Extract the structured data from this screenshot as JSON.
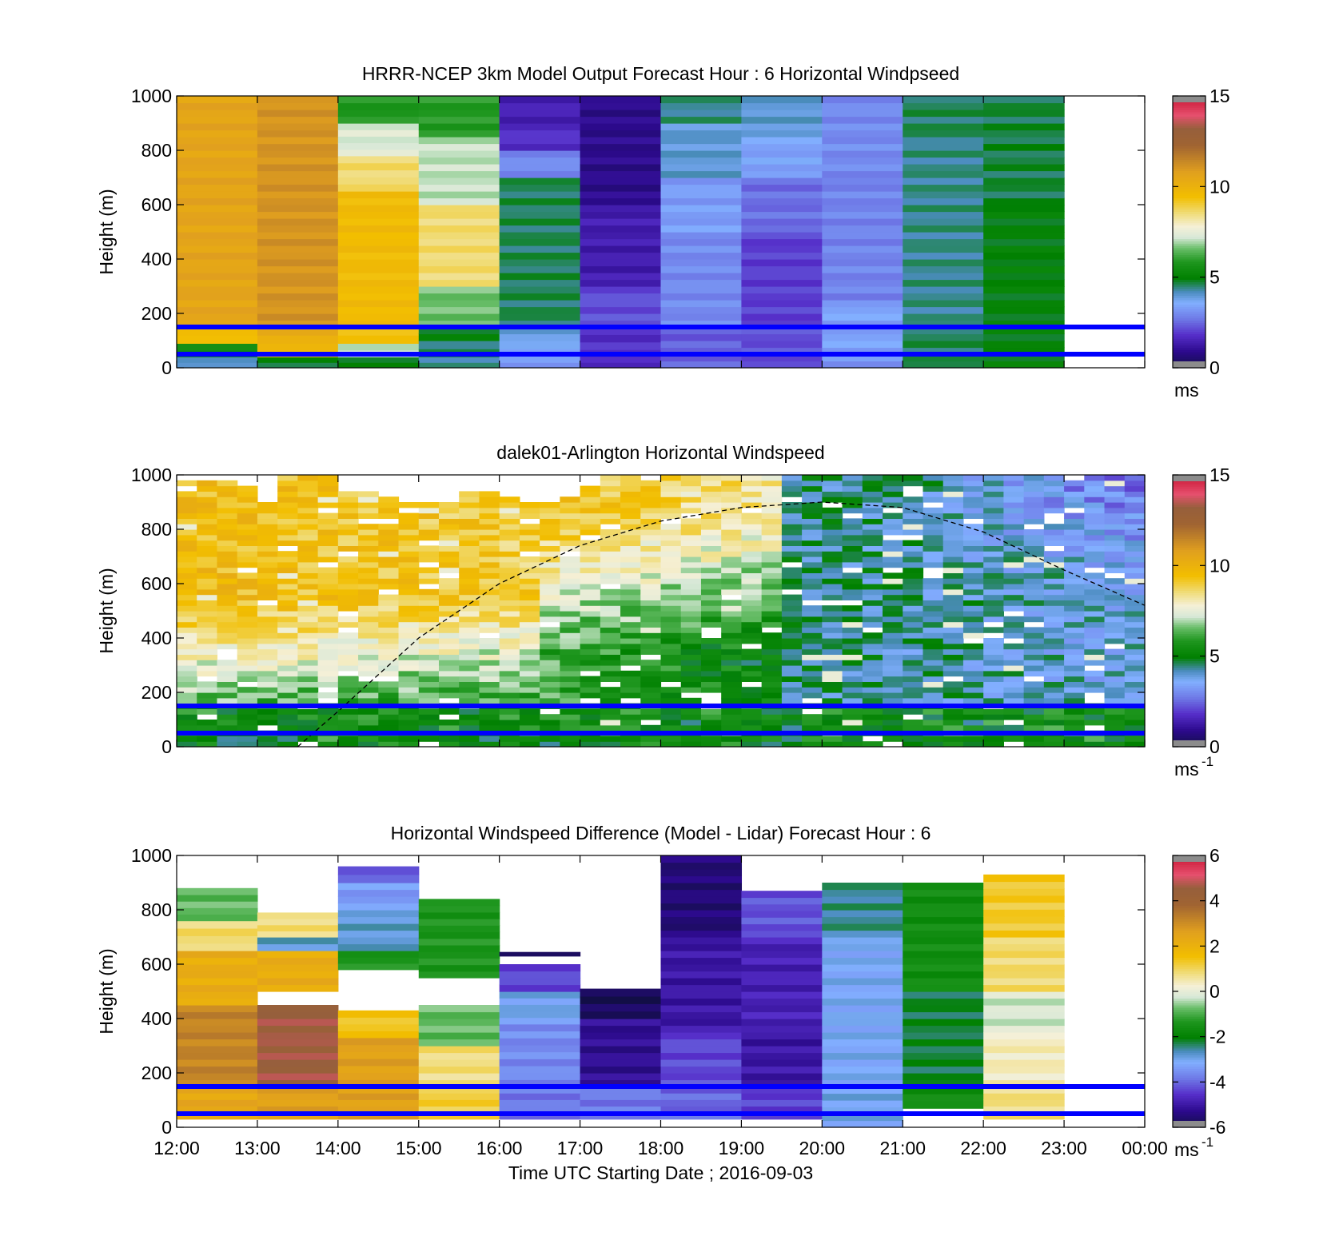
{
  "chart_data": [
    {
      "type": "heatmap",
      "title": "HRRR-NCEP 3km Model Output   Forecast Hour : 6 Horizontal Windpseed",
      "ylabel": "Height (m)",
      "ylim": [
        0,
        1000
      ],
      "yticks": [
        "0",
        "200",
        "400",
        "600",
        "800",
        "1000"
      ],
      "xlim": [
        12,
        24
      ],
      "grid": false,
      "colorbar": {
        "range": [
          0,
          15
        ],
        "ticks": [
          "0",
          "5",
          "10",
          "15"
        ],
        "unit": "ms"
      },
      "reference_lines_m": [
        150,
        50
      ],
      "reference_line_color": "#0000ff",
      "columns": [
        {
          "x0": 12,
          "x1": 13,
          "rows": [
            [
              0,
              40,
              4.2
            ],
            [
              40,
              90,
              5.6
            ],
            [
              90,
              150,
              9.6
            ],
            [
              150,
              1000,
              10.6
            ]
          ]
        },
        {
          "x0": 13,
          "x1": 14,
          "rows": [
            [
              0,
              40,
              4.8
            ],
            [
              40,
              90,
              9.6
            ],
            [
              90,
              150,
              10.2
            ],
            [
              150,
              1000,
              11.1
            ]
          ]
        },
        {
          "x0": 14,
          "x1": 15,
          "rows": [
            [
              0,
              40,
              4.8
            ],
            [
              40,
              90,
              7.0
            ],
            [
              90,
              150,
              9.3
            ],
            [
              150,
              650,
              9.6
            ],
            [
              650,
              780,
              8.6
            ],
            [
              780,
              900,
              7.3
            ],
            [
              900,
              1000,
              5.8
            ]
          ]
        },
        {
          "x0": 15,
          "x1": 16,
          "rows": [
            [
              0,
              40,
              4.4
            ],
            [
              40,
              100,
              4.6
            ],
            [
              100,
              150,
              5.0
            ],
            [
              150,
              300,
              6.6
            ],
            [
              300,
              600,
              8.6
            ],
            [
              600,
              850,
              7.1
            ],
            [
              850,
              1000,
              5.9
            ]
          ]
        },
        {
          "x0": 16,
          "x1": 17,
          "rows": [
            [
              0,
              40,
              3.3
            ],
            [
              40,
              100,
              3.6
            ],
            [
              100,
              150,
              4.0
            ],
            [
              150,
              700,
              4.6
            ],
            [
              700,
              800,
              3.0
            ],
            [
              800,
              900,
              1.8
            ],
            [
              900,
              1000,
              1.5
            ]
          ]
        },
        {
          "x0": 17,
          "x1": 18,
          "rows": [
            [
              0,
              40,
              1.6
            ],
            [
              40,
              150,
              1.8
            ],
            [
              150,
              300,
              2.2
            ],
            [
              300,
              600,
              1.4
            ],
            [
              600,
              1000,
              0.9
            ]
          ]
        },
        {
          "x0": 18,
          "x1": 19,
          "rows": [
            [
              0,
              150,
              2.4
            ],
            [
              150,
              500,
              3.0
            ],
            [
              500,
              700,
              3.3
            ],
            [
              700,
              900,
              4.0
            ],
            [
              900,
              1000,
              4.4
            ]
          ]
        },
        {
          "x0": 19,
          "x1": 20,
          "rows": [
            [
              0,
              150,
              2.2
            ],
            [
              150,
              500,
              2.0
            ],
            [
              500,
              700,
              2.6
            ],
            [
              700,
              850,
              3.4
            ],
            [
              850,
              1000,
              4.0
            ]
          ]
        },
        {
          "x0": 20,
          "x1": 21,
          "rows": [
            [
              0,
              50,
              3.2
            ],
            [
              50,
              150,
              3.4
            ],
            [
              150,
              250,
              3.4
            ],
            [
              250,
              700,
              2.9
            ],
            [
              700,
              1000,
              3.0
            ]
          ]
        },
        {
          "x0": 21,
          "x1": 22,
          "rows": [
            [
              0,
              150,
              4.6
            ],
            [
              150,
              850,
              4.4
            ],
            [
              850,
              1000,
              4.6
            ]
          ]
        },
        {
          "x0": 22,
          "x1": 23,
          "rows": [
            [
              0,
              150,
              5.0
            ],
            [
              150,
              600,
              5.0
            ],
            [
              600,
              1000,
              4.7
            ]
          ]
        }
      ]
    },
    {
      "type": "heatmap",
      "title": "dalek01-Arlington  Horizontal Windspeed",
      "ylabel": "Height (m)",
      "ylim": [
        0,
        1000
      ],
      "yticks": [
        "0",
        "200",
        "400",
        "600",
        "800",
        "1000"
      ],
      "xlim": [
        12,
        24
      ],
      "grid": false,
      "colorbar": {
        "range": [
          0,
          15
        ],
        "ticks": [
          "0",
          "5",
          "10",
          "15"
        ],
        "unit": "ms",
        "unit_exp": "-1"
      },
      "reference_lines_m": [
        150,
        50
      ],
      "reference_line_color": "#0000ff",
      "mixing_height_curve": {
        "style": "dashed",
        "points": [
          [
            13.5,
            0
          ],
          [
            14.0,
            130
          ],
          [
            15.0,
            400
          ],
          [
            16.0,
            600
          ],
          [
            17.0,
            740
          ],
          [
            18.0,
            830
          ],
          [
            19.0,
            880
          ],
          [
            20.0,
            900
          ],
          [
            21.0,
            880
          ],
          [
            22.0,
            790
          ],
          [
            23.0,
            650
          ],
          [
            24.0,
            520
          ]
        ]
      },
      "profile_time_step_h": 0.25,
      "column_top_m": [
        1000,
        990,
        980,
        960,
        900,
        1000,
        1000,
        1000,
        950,
        950,
        930,
        900,
        900,
        900,
        950,
        950,
        920,
        900,
        900,
        920,
        960,
        1000,
        1000,
        1000,
        1000,
        1000,
        1000,
        1000,
        1000,
        1000,
        1000,
        1000,
        1000,
        1000,
        1000,
        1000,
        1000,
        1000,
        1000,
        1000,
        1000,
        1000,
        1000,
        1000,
        1000,
        1000,
        1000,
        1000
      ],
      "profile_model": {
        "layers_m": [
          0,
          40,
          80,
          150,
          250,
          350,
          450,
          550,
          650,
          750,
          850,
          1000
        ]
      }
    },
    {
      "type": "heatmap",
      "title": "Horizontal Windspeed Difference (Model - Lidar) Forecast Hour : 6",
      "ylabel": "Height (m)",
      "xlabel": "Time UTC  Starting Date ; 2016-09-03",
      "ylim": [
        0,
        1000
      ],
      "yticks": [
        "0",
        "200",
        "400",
        "600",
        "800",
        "1000"
      ],
      "xlim": [
        12,
        24
      ],
      "xticks": [
        "12:00",
        "13:00",
        "14:00",
        "15:00",
        "16:00",
        "17:00",
        "18:00",
        "19:00",
        "20:00",
        "21:00",
        "22:00",
        "23:00",
        "00:00"
      ],
      "grid": false,
      "colorbar": {
        "range": [
          -6,
          6
        ],
        "ticks": [
          "-6",
          "-4",
          "-2",
          "0",
          "2",
          "4",
          "6"
        ],
        "unit": "ms",
        "unit_exp": "-1"
      },
      "reference_lines_m": [
        150,
        50
      ],
      "reference_line_color": "#0000ff",
      "columns": [
        {
          "x0": 12,
          "x1": 13,
          "rows": [
            [
              30,
              150,
              2.4
            ],
            [
              150,
              450,
              3.2
            ],
            [
              450,
              650,
              2.2
            ],
            [
              650,
              760,
              0.9
            ],
            [
              760,
              880,
              -0.8
            ]
          ]
        },
        {
          "x0": 13,
          "x1": 14,
          "rows": [
            [
              30,
              150,
              2.6
            ],
            [
              150,
              450,
              4.6
            ],
            [
              500,
              650,
              2.2
            ],
            [
              650,
              700,
              -2.8
            ],
            [
              700,
              790,
              0.8
            ]
          ]
        },
        {
          "x0": 14,
          "x1": 15,
          "rows": [
            [
              30,
              150,
              2.6
            ],
            [
              150,
              330,
              2.6
            ],
            [
              330,
              430,
              1.4
            ],
            [
              580,
              650,
              -1.4
            ],
            [
              650,
              800,
              -2.8
            ],
            [
              800,
              900,
              -3.4
            ],
            [
              900,
              960,
              -4.2
            ]
          ]
        },
        {
          "x0": 15,
          "x1": 16,
          "rows": [
            [
              30,
              150,
              1.2
            ],
            [
              150,
              300,
              0.8
            ],
            [
              300,
              450,
              -0.8
            ],
            [
              550,
              840,
              -1.4
            ]
          ]
        },
        {
          "x0": 16,
          "x1": 17,
          "rows": [
            [
              30,
              150,
              -3.8
            ],
            [
              150,
              380,
              -3.6
            ],
            [
              380,
              500,
              -3.0
            ],
            [
              500,
              600,
              -4.3
            ],
            [
              630,
              645,
              -5.5
            ]
          ]
        },
        {
          "x0": 17,
          "x1": 18,
          "rows": [
            [
              30,
              150,
              -3.8
            ],
            [
              150,
              400,
              -5.2
            ],
            [
              400,
              510,
              -5.8
            ]
          ]
        },
        {
          "x0": 18,
          "x1": 19,
          "rows": [
            [
              30,
              150,
              -4.0
            ],
            [
              150,
              350,
              -4.3
            ],
            [
              350,
              700,
              -5.0
            ],
            [
              700,
              1000,
              -5.5
            ]
          ]
        },
        {
          "x0": 19,
          "x1": 20,
          "rows": [
            [
              30,
              150,
              -4.4
            ],
            [
              150,
              350,
              -5.0
            ],
            [
              350,
              700,
              -4.8
            ],
            [
              700,
              870,
              -4.2
            ]
          ]
        },
        {
          "x0": 20,
          "x1": 21,
          "rows": [
            [
              0,
              150,
              -3.0
            ],
            [
              150,
              700,
              -3.1
            ],
            [
              700,
              900,
              -2.5
            ]
          ]
        },
        {
          "x0": 21,
          "x1": 22,
          "rows": [
            [
              70,
              150,
              -1.6
            ],
            [
              150,
              500,
              -2.2
            ],
            [
              500,
              900,
              -1.6
            ]
          ]
        },
        {
          "x0": 22,
          "x1": 23,
          "rows": [
            [
              30,
              150,
              0.8
            ],
            [
              150,
              350,
              0.4
            ],
            [
              350,
              500,
              -0.2
            ],
            [
              500,
              700,
              0.9
            ],
            [
              700,
              930,
              1.3
            ]
          ]
        }
      ]
    }
  ]
}
